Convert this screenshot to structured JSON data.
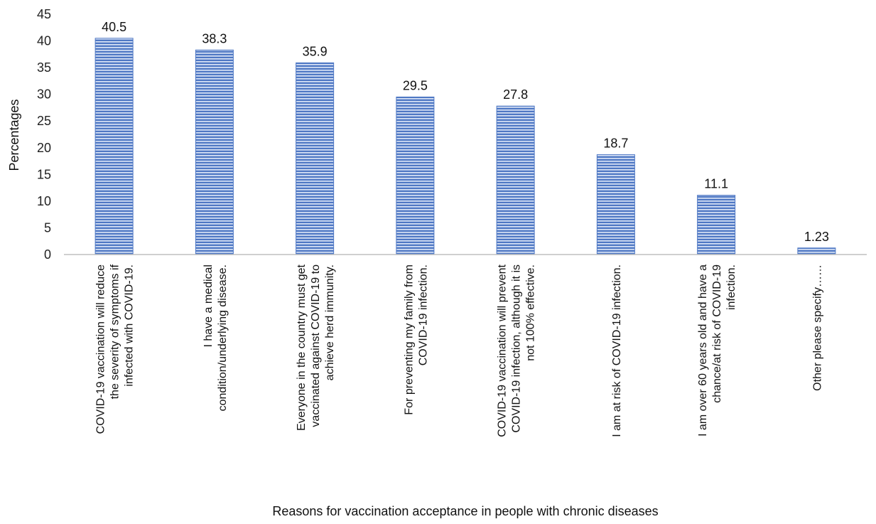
{
  "chart_data": {
    "type": "bar",
    "title": "",
    "xlabel": "Reasons for vaccination acceptance in people with chronic diseases",
    "ylabel": "Percentages",
    "ylim": [
      0,
      45
    ],
    "yticks": [
      0,
      5,
      10,
      15,
      20,
      25,
      30,
      35,
      40,
      45
    ],
    "grid": false,
    "legend": "none",
    "bar_color": "#4f78c4",
    "bar_stripe_color": "#dfe8f8",
    "categories": [
      [
        "COVID-19 vaccination will reduce",
        "the  severity of symptoms if",
        "infected with COVID-19."
      ],
      [
        "I have a medical",
        "condition/underlying disease."
      ],
      [
        "Everyone in the country must get",
        "vaccinated against COVID-19 to",
        "achieve herd immunity."
      ],
      [
        "For preventing my family from",
        "COVID-19 infection."
      ],
      [
        "COVID-19 vaccination will prevent",
        "COVID-19 infection, although it is",
        "not 100% effective."
      ],
      [
        "I am at risk of COVID-19 infection."
      ],
      [
        "I am over 60 years old and have a",
        "chance/at risk of COVID-19",
        "infection."
      ],
      [
        "Other please specify……"
      ]
    ],
    "values": [
      40.5,
      38.3,
      35.9,
      29.5,
      27.8,
      18.7,
      11.1,
      1.23
    ],
    "value_labels": [
      "40.5",
      "38.3",
      "35.9",
      "29.5",
      "27.8",
      "18.7",
      "11.1",
      "1.23"
    ]
  }
}
